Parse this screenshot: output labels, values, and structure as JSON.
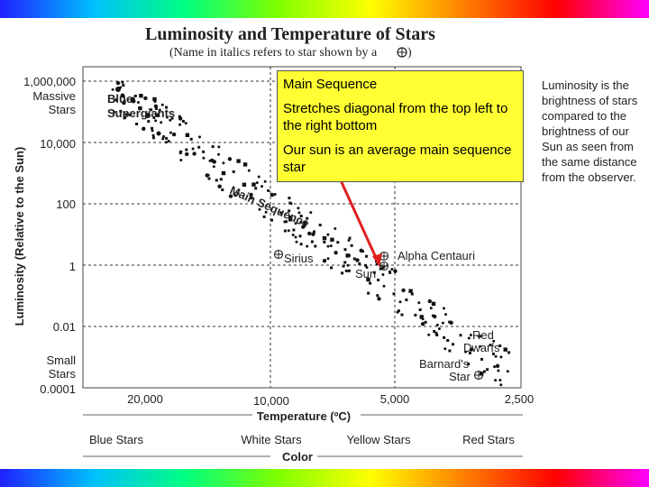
{
  "chart_data": {
    "type": "scatter",
    "title": "Luminosity and Temperature of Stars",
    "subtitle": "(Name in italics refers to star shown by a",
    "subtitle_end": ")",
    "ylabel": "Luminosity (Relative to the Sun)",
    "xlabel": "Temperature (ºC)",
    "color_axis_label": "Color",
    "y_scale": "log",
    "x_scale": "reversed",
    "y_ticks": [
      "1,000,000",
      "10,000",
      "100",
      "1",
      "0.01",
      "0.0001"
    ],
    "y_tick_labels_extra": {
      "top": [
        "Massive",
        "Stars"
      ],
      "bottom": [
        "Small",
        "Stars"
      ]
    },
    "x_ticks": [
      "20,000",
      "10,000",
      "5,000",
      "2,500"
    ],
    "color_labels": [
      "Blue Stars",
      "White Stars",
      "Yellow Stars",
      "Red Stars"
    ],
    "annotations": {
      "blue_supergiants": [
        "Blue",
        "Supergiants"
      ],
      "main_sequence": "Main Sequence",
      "sirius": "Sirius",
      "alpha_centauri": "Alpha Centauri",
      "sun": "Sun",
      "red_dwarfs": [
        "Red",
        "Dwarfs"
      ],
      "barnards_star": [
        "Barnard's",
        "Star"
      ]
    },
    "grid": true
  },
  "callout": {
    "heading": "Main Sequence",
    "line1": "Stretches diagonal from the top left to the right bottom",
    "line2": "Our sun is an average main sequence star"
  },
  "side_note": "Luminosity is the brightness of stars compared to the brightness of our Sun as seen from the same distance from the observer.",
  "colors": {
    "callout_bg": "#ffff33",
    "arrow": "#e02020",
    "points": "#111111"
  }
}
